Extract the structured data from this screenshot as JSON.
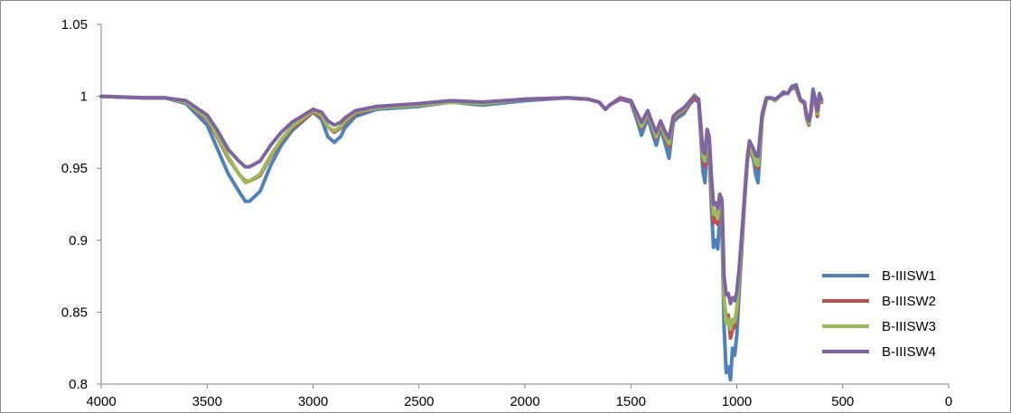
{
  "chart_data": {
    "type": "line",
    "title": "",
    "xlabel": "",
    "ylabel": "",
    "xlim": [
      4000,
      0
    ],
    "ylim": [
      0.8,
      1.05
    ],
    "x_reversed": true,
    "xticks": [
      "4000",
      "3500",
      "3000",
      "2500",
      "2000",
      "1500",
      "1000",
      "500",
      "0"
    ],
    "yticks": [
      "0.8",
      "0.85",
      "0.9",
      "0.95",
      "1",
      "1.05"
    ],
    "grid": false,
    "legend_position": "right",
    "x": [
      4000,
      3800,
      3700,
      3600,
      3500,
      3450,
      3400,
      3350,
      3320,
      3300,
      3250,
      3200,
      3150,
      3100,
      3000,
      2960,
      2930,
      2900,
      2870,
      2850,
      2800,
      2700,
      2500,
      2350,
      2200,
      2000,
      1800,
      1700,
      1650,
      1620,
      1600,
      1550,
      1500,
      1470,
      1450,
      1420,
      1400,
      1380,
      1360,
      1340,
      1320,
      1300,
      1280,
      1250,
      1220,
      1200,
      1180,
      1160,
      1150,
      1140,
      1130,
      1120,
      1110,
      1100,
      1090,
      1080,
      1070,
      1060,
      1050,
      1040,
      1030,
      1020,
      1010,
      1000,
      990,
      980,
      970,
      960,
      950,
      940,
      930,
      920,
      910,
      900,
      880,
      860,
      840,
      820,
      800,
      780,
      760,
      740,
      720,
      700,
      680,
      670,
      660,
      650,
      640,
      630,
      620,
      610,
      600
    ],
    "series": [
      {
        "name": "B-IIISW1",
        "color": "#4f81bd",
        "values": [
          1.0,
          0.999,
          0.999,
          0.995,
          0.98,
          0.963,
          0.946,
          0.934,
          0.927,
          0.927,
          0.934,
          0.952,
          0.966,
          0.976,
          0.989,
          0.984,
          0.972,
          0.968,
          0.972,
          0.978,
          0.986,
          0.991,
          0.993,
          0.996,
          0.994,
          0.997,
          0.999,
          0.998,
          0.996,
          0.991,
          0.994,
          0.998,
          0.996,
          0.983,
          0.973,
          0.985,
          0.975,
          0.966,
          0.978,
          0.968,
          0.957,
          0.982,
          0.985,
          0.988,
          0.995,
          0.998,
          0.996,
          0.948,
          0.94,
          0.968,
          0.96,
          0.924,
          0.895,
          0.9,
          0.894,
          0.917,
          0.91,
          0.84,
          0.808,
          0.812,
          0.803,
          0.825,
          0.82,
          0.834,
          0.86,
          0.885,
          0.91,
          0.935,
          0.955,
          0.965,
          0.96,
          0.955,
          0.945,
          0.94,
          0.985,
          0.998,
          0.999,
          0.997,
          1.0,
          1.003,
          1.002,
          1.007,
          1.008,
          0.998,
          0.996,
          0.985,
          0.982,
          0.99,
          1.005,
          0.998,
          0.99,
          1.002,
          0.997
        ]
      },
      {
        "name": "B-IIISW2",
        "color": "#c0504d",
        "values": [
          1.0,
          0.999,
          0.999,
          0.996,
          0.984,
          0.971,
          0.957,
          0.946,
          0.941,
          0.941,
          0.945,
          0.958,
          0.969,
          0.978,
          0.989,
          0.986,
          0.979,
          0.975,
          0.978,
          0.982,
          0.988,
          0.992,
          0.994,
          0.996,
          0.995,
          0.998,
          0.999,
          0.998,
          0.996,
          0.991,
          0.994,
          0.998,
          0.997,
          0.986,
          0.978,
          0.988,
          0.979,
          0.971,
          0.981,
          0.972,
          0.965,
          0.984,
          0.987,
          0.99,
          0.996,
          0.998,
          0.997,
          0.956,
          0.951,
          0.972,
          0.966,
          0.935,
          0.912,
          0.915,
          0.911,
          0.925,
          0.921,
          0.858,
          0.846,
          0.848,
          0.832,
          0.838,
          0.84,
          0.85,
          0.868,
          0.89,
          0.912,
          0.935,
          0.955,
          0.966,
          0.962,
          0.958,
          0.952,
          0.95,
          0.985,
          0.998,
          0.999,
          0.997,
          1.0,
          1.002,
          1.002,
          1.006,
          1.005,
          0.997,
          0.995,
          0.984,
          0.98,
          0.988,
          1.002,
          0.996,
          0.986,
          0.998,
          0.996
        ]
      },
      {
        "name": "B-IIISW3",
        "color": "#9bbb59",
        "values": [
          1.0,
          0.999,
          0.999,
          0.996,
          0.985,
          0.972,
          0.958,
          0.946,
          0.94,
          0.941,
          0.946,
          0.959,
          0.97,
          0.979,
          0.99,
          0.987,
          0.979,
          0.976,
          0.979,
          0.983,
          0.989,
          0.992,
          0.994,
          0.996,
          0.995,
          0.998,
          0.999,
          0.998,
          0.996,
          0.991,
          0.994,
          0.999,
          0.997,
          0.987,
          0.979,
          0.989,
          0.98,
          0.972,
          0.982,
          0.973,
          0.967,
          0.985,
          0.988,
          0.991,
          0.997,
          1.001,
          0.998,
          0.958,
          0.955,
          0.974,
          0.968,
          0.938,
          0.918,
          0.92,
          0.915,
          0.928,
          0.924,
          0.86,
          0.842,
          0.845,
          0.838,
          0.845,
          0.843,
          0.853,
          0.87,
          0.892,
          0.914,
          0.936,
          0.956,
          0.967,
          0.963,
          0.958,
          0.953,
          0.952,
          0.986,
          0.998,
          0.999,
          0.997,
          1.0,
          1.002,
          1.002,
          1.006,
          1.006,
          0.997,
          0.995,
          0.985,
          0.981,
          0.989,
          1.003,
          0.997,
          0.988,
          1.0,
          0.997
        ]
      },
      {
        "name": "B-IIISW4",
        "color": "#8064a2",
        "values": [
          1.0,
          0.999,
          0.999,
          0.997,
          0.987,
          0.976,
          0.963,
          0.955,
          0.951,
          0.951,
          0.955,
          0.966,
          0.975,
          0.982,
          0.991,
          0.989,
          0.983,
          0.98,
          0.982,
          0.985,
          0.99,
          0.993,
          0.995,
          0.997,
          0.996,
          0.998,
          0.999,
          0.998,
          0.996,
          0.991,
          0.994,
          0.999,
          0.997,
          0.988,
          0.982,
          0.99,
          0.982,
          0.975,
          0.983,
          0.976,
          0.971,
          0.986,
          0.989,
          0.992,
          0.997,
          1.0,
          0.998,
          0.962,
          0.96,
          0.977,
          0.972,
          0.944,
          0.925,
          0.926,
          0.922,
          0.932,
          0.928,
          0.875,
          0.862,
          0.863,
          0.856,
          0.86,
          0.858,
          0.864,
          0.878,
          0.897,
          0.917,
          0.938,
          0.958,
          0.969,
          0.966,
          0.963,
          0.959,
          0.958,
          0.988,
          0.999,
          0.999,
          0.998,
          1.0,
          1.002,
          1.002,
          1.006,
          1.007,
          0.998,
          0.995,
          0.986,
          0.983,
          0.99,
          1.003,
          0.998,
          0.99,
          1.001,
          0.998
        ]
      }
    ]
  }
}
